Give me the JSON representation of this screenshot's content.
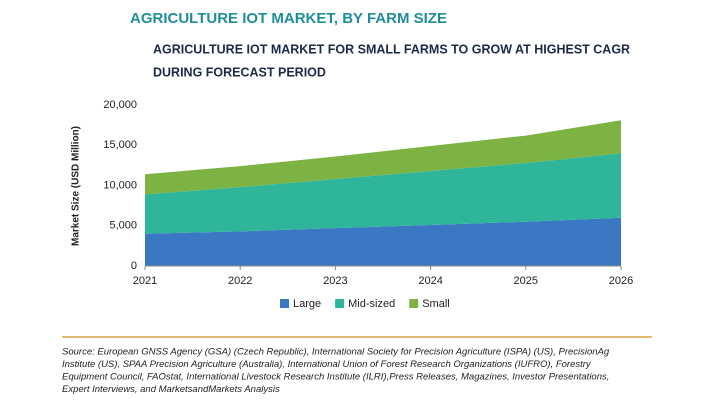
{
  "chart_data": {
    "type": "stacked-area",
    "title": "AGRICULTURE IOT MARKET, BY FARM SIZE",
    "subtitle_lines": [
      "AGRICULTURE IOT MARKET FOR SMALL FARMS TO GROW AT HIGHEST CAGR",
      "DURING FORECAST PERIOD"
    ],
    "y_label": "Market Size (USD Million)",
    "x": [
      2021,
      2022,
      2023,
      2024,
      2025,
      2026
    ],
    "xlim": [
      2021,
      2026
    ],
    "xticks": [
      2021,
      2022,
      2023,
      2024,
      2025,
      2026
    ],
    "ylim": [
      0,
      20000
    ],
    "yticks": [
      0,
      {
        "value": 5000,
        "label": "5,000"
      },
      {
        "value": 10000,
        "label": "10,000"
      },
      {
        "value": 15000,
        "label": "15,000"
      },
      {
        "value": 20000,
        "label": "20,000"
      }
    ],
    "grid": false,
    "legend": "bottom",
    "series": [
      {
        "name": "Large",
        "color": "#3a78c4",
        "values": [
          4000,
          4300,
          4700,
          5100,
          5500,
          6000
        ]
      },
      {
        "name": "Mid-sized",
        "color": "#2fb59a",
        "values": [
          4900,
          5500,
          6100,
          6700,
          7300,
          8000
        ]
      },
      {
        "name": "Small",
        "color": "#7db343",
        "values": [
          2500,
          2600,
          2800,
          3100,
          3400,
          4100
        ]
      }
    ],
    "source_lines": [
      "Source: European GNSS Agency (GSA) (Czech Republic), International Society for Precision Agriculture (ISPA) (US), PrecisionAg",
      "Institute (US), SPAA Precision Agriculture (Australia), International Union of Forest Research Organizations (IUFRO), Forestry",
      "Equipment Council, FAOstat, International Livestock Research Institute (ILRI),Press Releases, Magazines, Investor Presentations,",
      "Expert Interviews, and MarketsandMarkets Analysis"
    ]
  }
}
